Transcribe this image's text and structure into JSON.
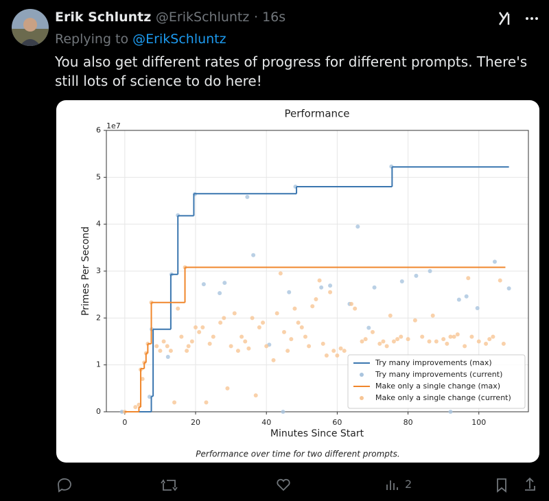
{
  "tweet": {
    "author": "Erik Schluntz",
    "handle": "@ErikSchluntz",
    "time": "· 16s",
    "replying_label": "Replying to",
    "replying_to": "@ErikSchluntz",
    "text": "You also get different rates of progress for different prompts. There's still lots of science to do here!",
    "views": "2"
  },
  "chart_data": {
    "type": "line",
    "title": "Performance",
    "x_label": "Minutes Since Start",
    "y_label": "Primes Per Second",
    "y_offset_label": "1e7",
    "caption": "Performance over time for two different prompts.",
    "xlim": [
      -5.2,
      114
    ],
    "ylim": [
      0,
      6
    ],
    "xticks": [
      0,
      20,
      40,
      60,
      80,
      100
    ],
    "yticks": [
      0,
      1,
      2,
      3,
      4,
      5,
      6
    ],
    "grid": true,
    "legend": "lower right",
    "series": [
      {
        "name": "Try many improvements (max)",
        "color": "#3a76af",
        "kind": "step",
        "x": [
          0,
          7.5,
          8,
          13,
          15,
          19.5,
          48.5,
          75.5,
          108.5
        ],
        "values": [
          0,
          0.33,
          1.76,
          2.93,
          4.18,
          4.65,
          4.8,
          5.22,
          5.22
        ]
      },
      {
        "name": "Try many improvements (current)",
        "color": "#a9c4de",
        "kind": "scatter",
        "x": [
          -0.8,
          7,
          7.6,
          12.2,
          13.2,
          15,
          19.8,
          22.3,
          28.2,
          26.8,
          34.6,
          36.3,
          40.8,
          44.7,
          46.4,
          48.2,
          55.5,
          58,
          63.5,
          65.8,
          68.9,
          70.5,
          75.3,
          78.3,
          82.3,
          86.2,
          92,
          94.4,
          96.5,
          99.6,
          104.5,
          108.5
        ],
        "values": [
          0,
          0.32,
          1.76,
          1.17,
          2.93,
          4.19,
          4.64,
          2.72,
          2.75,
          2.53,
          4.58,
          3.34,
          1.43,
          0,
          2.55,
          4.8,
          2.65,
          2.69,
          2.3,
          3.95,
          1.79,
          2.65,
          5.23,
          2.78,
          2.9,
          3.0,
          0,
          2.39,
          2.46,
          2.21,
          3.2,
          2.63
        ]
      },
      {
        "name": "Make only a single change (max)",
        "color": "#f0862b",
        "kind": "step",
        "x": [
          0,
          4,
          4.5,
          5.5,
          6,
          6.5,
          7.5,
          17,
          107.5
        ],
        "values": [
          0,
          0.1,
          0.92,
          1.05,
          1.25,
          1.45,
          2.33,
          3.08,
          3.08
        ]
      },
      {
        "name": "Make only a single change (current)",
        "color": "#f7c595",
        "kind": "scatter",
        "x": [
          0,
          3,
          4,
          4.5,
          5,
          5.5,
          6,
          6.5,
          7.5,
          9,
          10,
          11,
          12,
          13,
          14,
          15,
          16,
          17,
          17.5,
          18,
          19,
          20,
          21,
          22,
          23,
          24,
          25,
          27,
          28,
          29,
          30,
          31,
          32,
          33,
          34,
          35,
          36,
          37,
          38,
          39,
          40,
          42,
          43,
          44,
          45,
          46,
          47,
          48,
          49,
          50,
          51,
          52,
          53,
          54,
          55,
          56,
          57,
          58,
          59,
          60,
          61,
          62,
          64,
          65,
          67,
          68,
          70,
          72,
          73,
          74,
          75,
          76,
          77,
          78,
          80,
          82,
          84,
          86,
          87,
          88,
          90,
          91,
          92,
          93,
          94,
          96,
          97,
          98,
          100,
          102,
          103,
          104,
          106,
          107
        ],
        "values": [
          0,
          0.1,
          0.15,
          0.9,
          0.7,
          1.05,
          1.25,
          1.45,
          2.33,
          1.4,
          1.3,
          1.5,
          1.4,
          1.3,
          0.2,
          2.2,
          1.6,
          3.08,
          1.3,
          1.4,
          1.5,
          1.8,
          1.7,
          1.8,
          0.2,
          1.45,
          1.6,
          1.9,
          2.0,
          0.5,
          1.4,
          2.1,
          1.3,
          1.6,
          1.5,
          1.35,
          2.0,
          0.35,
          1.8,
          1.9,
          1.4,
          1.1,
          2.1,
          2.95,
          1.7,
          1.3,
          1.55,
          2.2,
          1.9,
          1.8,
          1.6,
          1.4,
          2.25,
          2.4,
          2.8,
          1.45,
          1.2,
          2.55,
          1.3,
          1.2,
          1.35,
          1.3,
          2.3,
          2.2,
          1.5,
          1.55,
          1.7,
          1.45,
          1.5,
          1.4,
          2.05,
          1.5,
          1.55,
          1.6,
          1.55,
          1.95,
          1.6,
          1.5,
          2.05,
          1.5,
          1.55,
          1.45,
          1.6,
          1.6,
          1.65,
          1.4,
          2.85,
          1.6,
          1.5,
          1.45,
          1.55,
          1.6,
          2.8,
          1.45
        ]
      }
    ]
  }
}
